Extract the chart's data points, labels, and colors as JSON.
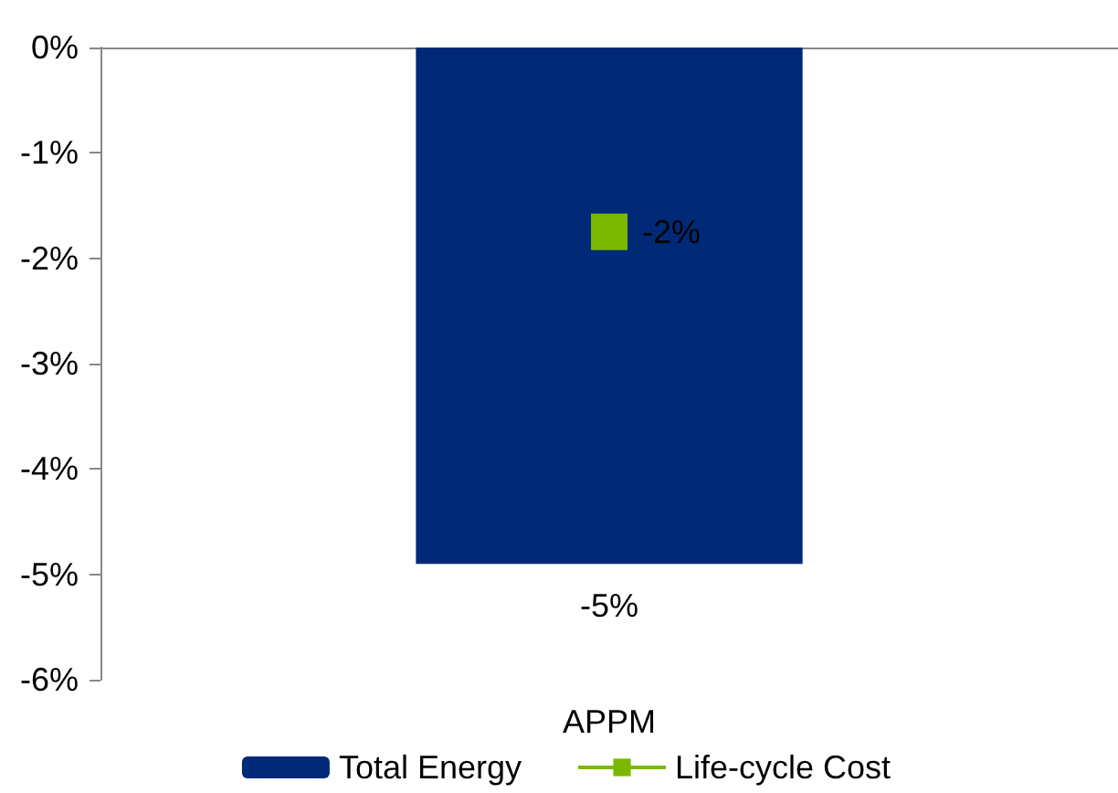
{
  "chart_data": {
    "type": "bar",
    "categories": [
      "APPM"
    ],
    "series": [
      {
        "name": "Total Energy",
        "color": "#002a77",
        "values": [
          -4.9
        ],
        "value_labels": [
          "-5%"
        ]
      },
      {
        "name": "Life-cycle Cost",
        "type": "line",
        "color": "#7ab800",
        "values": [
          -1.75
        ],
        "value_labels": [
          "-2%"
        ]
      }
    ],
    "ylim": [
      -6,
      0
    ],
    "yticks": [
      {
        "value": 0,
        "label": "0%"
      },
      {
        "value": -1,
        "label": "-1%"
      },
      {
        "value": -2,
        "label": "-2%"
      },
      {
        "value": -3,
        "label": "-3%"
      },
      {
        "value": -4,
        "label": "-4%"
      },
      {
        "value": -5,
        "label": "-5%"
      },
      {
        "value": -6,
        "label": "-6%"
      }
    ],
    "marker": "square",
    "grid": false,
    "legend": "bottom"
  }
}
